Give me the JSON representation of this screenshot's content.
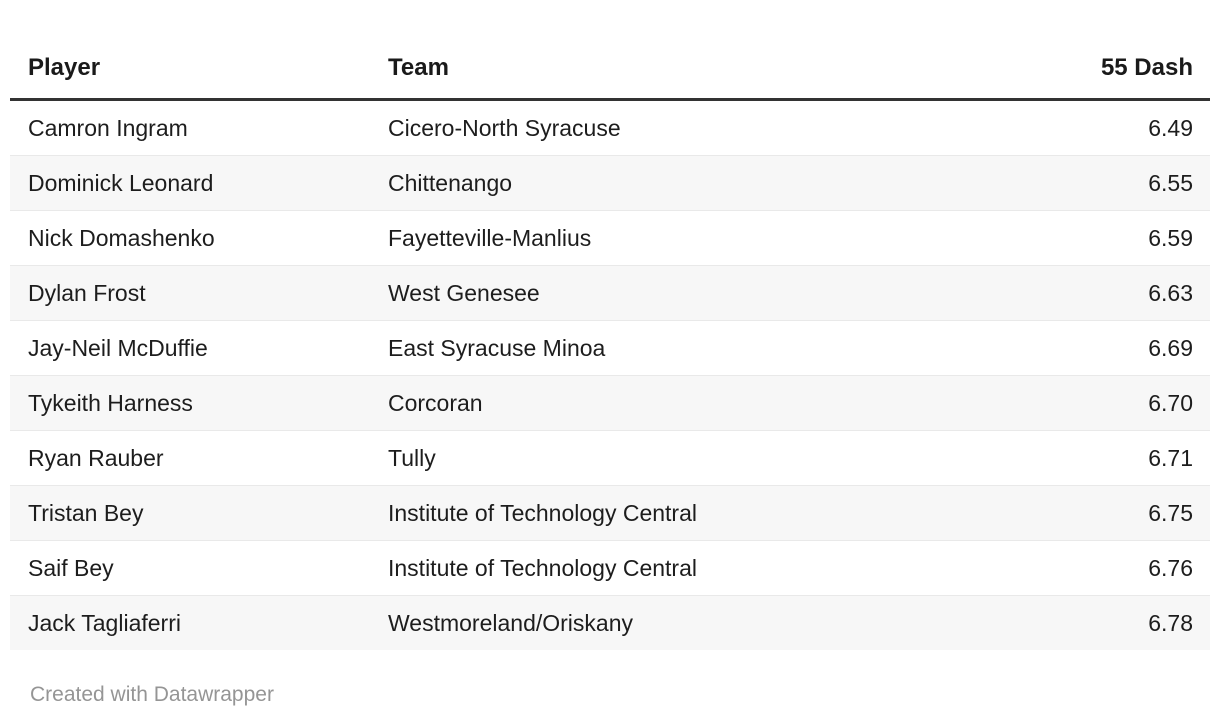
{
  "chart_data": {
    "type": "table",
    "columns": [
      "Player",
      "Team",
      "55 Dash"
    ],
    "rows": [
      [
        "Camron Ingram",
        "Cicero-North Syracuse",
        "6.49"
      ],
      [
        "Dominick Leonard",
        "Chittenango",
        "6.55"
      ],
      [
        "Nick Domashenko",
        "Fayetteville-Manlius",
        "6.59"
      ],
      [
        "Dylan Frost",
        "West Genesee",
        "6.63"
      ],
      [
        "Jay-Neil McDuffie",
        "East Syracuse Minoa",
        "6.69"
      ],
      [
        "Tykeith Harness",
        "Corcoran",
        "6.70"
      ],
      [
        "Ryan Rauber",
        "Tully",
        "6.71"
      ],
      [
        "Tristan Bey",
        "Institute of Technology Central",
        "6.75"
      ],
      [
        "Saif Bey",
        "Institute of Technology Central",
        "6.76"
      ],
      [
        "Jack Tagliaferri",
        "Westmoreland/Oriskany",
        "6.78"
      ]
    ],
    "layout": {
      "striped_rows": true,
      "stripe_color": "#f7f7f7",
      "row_divider_color": "#e9e9e9",
      "header_rule_color": "#333333",
      "numeric_column_align": "right"
    }
  },
  "footer": {
    "credit": "Created with Datawrapper"
  },
  "colors": {
    "text": "#1d1d1d",
    "header_text": "#1a1a1a",
    "footer_text": "#959595",
    "background": "#ffffff"
  }
}
